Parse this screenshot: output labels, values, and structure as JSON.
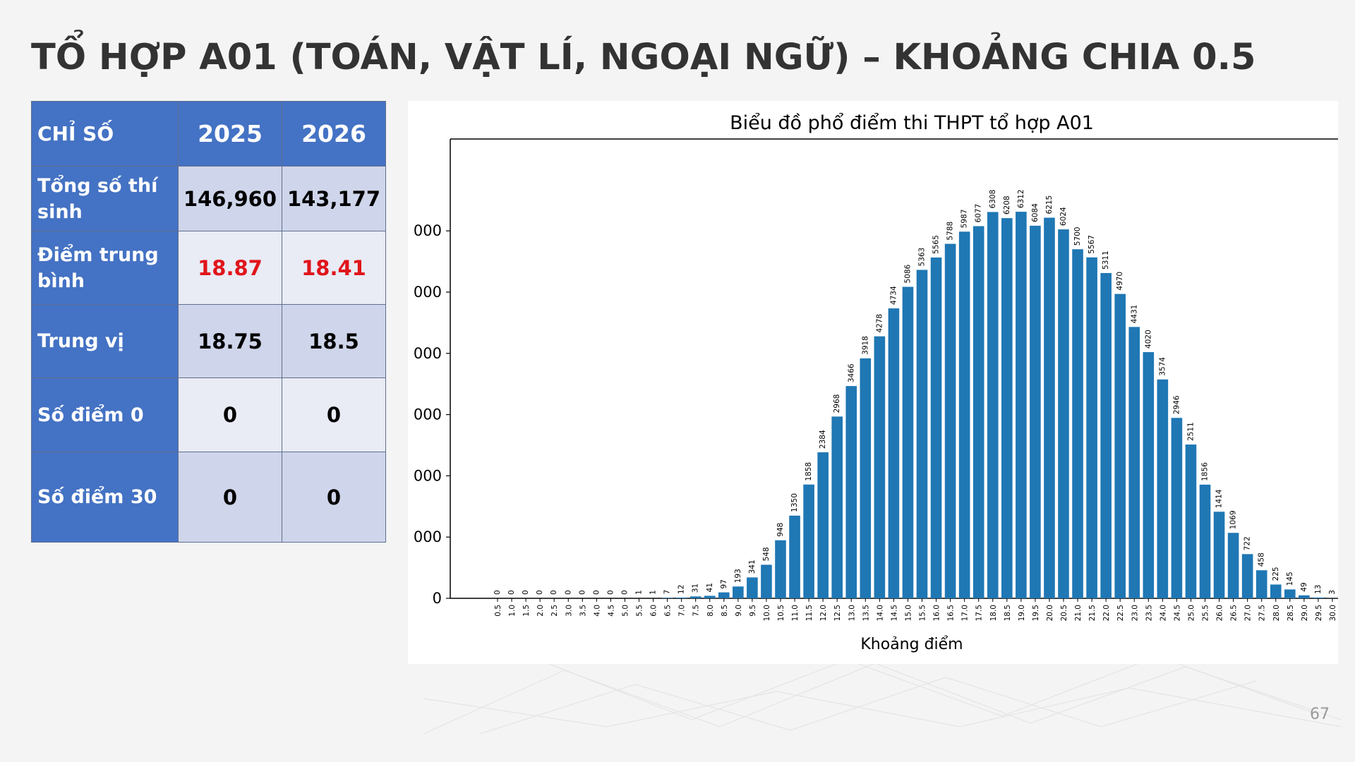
{
  "slide": {
    "title": "TỔ HỢP A01 (TOÁN, VẬT LÍ, NGOẠI NGỮ) – KHOẢNG CHIA 0.5",
    "page_number": "67"
  },
  "table": {
    "header": {
      "label": "CHỈ SỐ",
      "year1": "2025",
      "year2": "2026"
    },
    "rows": [
      {
        "label": "Tổng số thí sinh",
        "v1": "146,960",
        "v2": "143,177"
      },
      {
        "label": "Điểm trung bình",
        "v1": "18.87",
        "v2": "18.41"
      },
      {
        "label": "Trung vị",
        "v1": "18.75",
        "v2": "18.5"
      },
      {
        "label": "Số điểm 0",
        "v1": "0",
        "v2": "0"
      },
      {
        "label": "Số điểm 30",
        "v1": "0",
        "v2": "0"
      }
    ],
    "colors": {
      "header_bg": "#4472c4",
      "highlight_value": "#e0151b",
      "row_dark": "#cfd5ea",
      "row_light": "#e9ebf5"
    }
  },
  "chart_data": {
    "type": "bar",
    "title": "Biểu đồ phổ điểm thi THPT tổ hợp A01",
    "xlabel": "Khoảng điểm",
    "ylabel": "",
    "y_tick_labels": [
      "0",
      "000",
      "000",
      "000",
      "000",
      "000",
      "000"
    ],
    "ylim": [
      0,
      7500
    ],
    "bar_color": "#1f77b4",
    "categories": [
      "0.5",
      "1.0",
      "1.5",
      "2.0",
      "2.5",
      "3.0",
      "3.5",
      "4.0",
      "4.5",
      "5.0",
      "5.5",
      "6.0",
      "6.5",
      "7.0",
      "7.5",
      "8.0",
      "8.5",
      "9.0",
      "9.5",
      "10.0",
      "10.5",
      "11.0",
      "11.5",
      "12.0",
      "12.5",
      "13.0",
      "13.5",
      "14.0",
      "14.5",
      "15.0",
      "15.5",
      "16.0",
      "16.5",
      "17.0",
      "17.5",
      "18.0",
      "18.5",
      "19.0",
      "19.5",
      "20.0",
      "20.5",
      "21.0",
      "21.5",
      "22.0",
      "22.5",
      "23.0",
      "23.5",
      "24.0",
      "24.5",
      "25.0",
      "25.5",
      "26.0",
      "26.5",
      "27.0",
      "27.5",
      "28.0",
      "28.5",
      "29.0",
      "29.5",
      "30.0"
    ],
    "values": [
      0,
      0,
      0,
      0,
      0,
      0,
      0,
      0,
      0,
      0,
      1,
      1,
      7,
      12,
      31,
      41,
      97,
      193,
      341,
      548,
      948,
      1350,
      1858,
      2384,
      2968,
      3466,
      3918,
      4278,
      4734,
      5086,
      5363,
      5565,
      5788,
      5987,
      6077,
      6308,
      6208,
      6312,
      6084,
      6215,
      6024,
      5700,
      5567,
      5311,
      4970,
      4431,
      4020,
      3574,
      2946,
      2511,
      1856,
      1414,
      1069,
      722,
      458,
      225,
      145,
      49,
      13,
      3
    ]
  }
}
